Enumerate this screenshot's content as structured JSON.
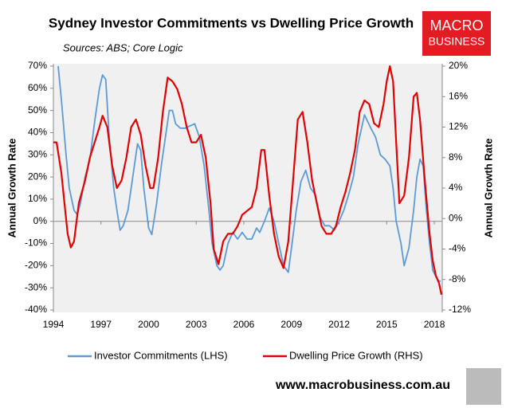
{
  "chart_data": {
    "type": "line",
    "title": "Sydney Investor Commitments vs Dwelling Price Growth",
    "subtitle": "Sources: ABS; Core Logic",
    "y_label": "Annual Growth Rate",
    "y2_label": "Annual Growth Rate",
    "xlim": [
      1994,
      2018.5
    ],
    "xticks": [
      1994,
      1997,
      2000,
      2003,
      2006,
      2009,
      2012,
      2015,
      2018
    ],
    "ylim": [
      -40,
      70
    ],
    "yticks": [
      {
        "value": -40,
        "label": "-40%"
      },
      {
        "value": -30,
        "label": "-30%"
      },
      {
        "value": -20,
        "label": "-20%"
      },
      {
        "value": -10,
        "label": "-10%"
      },
      {
        "value": 0,
        "label": "0%"
      },
      {
        "value": 10,
        "label": "10%"
      },
      {
        "value": 20,
        "label": "20%"
      },
      {
        "value": 30,
        "label": "30%"
      },
      {
        "value": 40,
        "label": "40%"
      },
      {
        "value": 50,
        "label": "50%"
      },
      {
        "value": 60,
        "label": "60%"
      },
      {
        "value": 70,
        "label": "70%"
      }
    ],
    "y2lim": [
      -12,
      20
    ],
    "y2ticks": [
      {
        "value": -12,
        "label": "-12%"
      },
      {
        "value": -8,
        "label": "-8%"
      },
      {
        "value": -4,
        "label": "-4%"
      },
      {
        "value": 0,
        "label": "0%"
      },
      {
        "value": 4,
        "label": "4%"
      },
      {
        "value": 8,
        "label": "8%"
      },
      {
        "value": 12,
        "label": "12%"
      },
      {
        "value": 16,
        "label": "16%"
      },
      {
        "value": 20,
        "label": "20%"
      }
    ],
    "grid": false,
    "plot_background": "#f0f0f0",
    "series": [
      {
        "name": "Investor Commitments (LHS)",
        "color": "#5b9bd5",
        "axis": "y",
        "x": [
          1994.3,
          1994.5,
          1994.8,
          1995.0,
          1995.3,
          1995.5,
          1995.7,
          1996.0,
          1996.3,
          1996.6,
          1996.9,
          1997.1,
          1997.3,
          1997.5,
          1997.8,
          1998.0,
          1998.2,
          1998.4,
          1998.7,
          1999.0,
          1999.3,
          1999.5,
          1999.7,
          2000.0,
          2000.2,
          2000.5,
          2000.8,
          2001.0,
          2001.3,
          2001.5,
          2001.7,
          2002.0,
          2002.3,
          2002.6,
          2002.9,
          2003.2,
          2003.5,
          2003.8,
          2004.0,
          2004.3,
          2004.5,
          2004.7,
          2005.0,
          2005.3,
          2005.6,
          2005.9,
          2006.2,
          2006.5,
          2006.8,
          2007.0,
          2007.3,
          2007.6,
          2007.9,
          2008.2,
          2008.5,
          2008.8,
          2009.0,
          2009.3,
          2009.6,
          2009.9,
          2010.2,
          2010.5,
          2010.8,
          2011.1,
          2011.4,
          2011.7,
          2012.0,
          2012.3,
          2012.6,
          2012.9,
          2013.2,
          2013.6,
          2013.8,
          2014.0,
          2014.3,
          2014.6,
          2014.9,
          2015.2,
          2015.4,
          2015.6,
          2015.9,
          2016.1,
          2016.4,
          2016.7,
          2016.9,
          2017.1,
          2017.3,
          2017.5,
          2017.7,
          2017.9,
          2018.1,
          2018.3,
          2018.4
        ],
        "values": [
          70,
          55,
          30,
          15,
          5,
          3,
          8,
          20,
          28,
          45,
          60,
          66,
          64,
          40,
          15,
          5,
          -4,
          -2,
          5,
          20,
          35,
          32,
          15,
          -3,
          -6,
          8,
          25,
          35,
          50,
          50,
          44,
          42,
          42,
          43,
          44,
          38,
          25,
          5,
          -10,
          -20,
          -22,
          -20,
          -10,
          -5,
          -8,
          -5,
          -8,
          -8,
          -3,
          -5,
          0,
          6,
          0,
          -10,
          -20,
          -23,
          -12,
          5,
          18,
          23,
          15,
          12,
          2,
          -2,
          -2,
          -4,
          0,
          5,
          12,
          20,
          35,
          48,
          45,
          42,
          38,
          30,
          28,
          25,
          15,
          0,
          -10,
          -20,
          -12,
          5,
          20,
          28,
          25,
          5,
          -10,
          -22,
          -25,
          -27,
          -27
        ]
      },
      {
        "name": "Dwelling Price Growth (RHS)",
        "color": "#e00000",
        "axis": "y2",
        "x": [
          1994.0,
          1994.2,
          1994.5,
          1994.7,
          1994.9,
          1995.1,
          1995.3,
          1995.6,
          1996.0,
          1996.3,
          1996.6,
          1996.9,
          1997.1,
          1997.4,
          1997.7,
          1998.0,
          1998.3,
          1998.6,
          1998.9,
          1999.2,
          1999.5,
          1999.8,
          2000.1,
          2000.3,
          2000.6,
          2000.9,
          2001.2,
          2001.5,
          2001.8,
          2002.1,
          2002.4,
          2002.7,
          2003.0,
          2003.3,
          2003.6,
          2003.9,
          2004.1,
          2004.4,
          2004.7,
          2005.0,
          2005.3,
          2005.6,
          2005.9,
          2006.2,
          2006.5,
          2006.8,
          2007.1,
          2007.3,
          2007.6,
          2007.9,
          2008.2,
          2008.5,
          2008.8,
          2009.1,
          2009.4,
          2009.7,
          2010.0,
          2010.3,
          2010.6,
          2010.9,
          2011.2,
          2011.5,
          2011.8,
          2012.1,
          2012.4,
          2012.7,
          2013.0,
          2013.3,
          2013.6,
          2013.9,
          2014.2,
          2014.5,
          2014.8,
          2015.0,
          2015.2,
          2015.4,
          2015.6,
          2015.8,
          2016.1,
          2016.4,
          2016.7,
          2016.9,
          2017.1,
          2017.4,
          2017.7,
          2017.9,
          2018.1,
          2018.3,
          2018.45
        ],
        "values": [
          10,
          10,
          6,
          2,
          -2,
          -3.8,
          -3,
          2,
          5,
          8,
          10,
          12,
          13.5,
          12,
          7,
          4,
          5,
          8,
          12,
          13,
          11,
          7,
          4,
          4,
          8,
          14,
          18.5,
          18,
          17,
          15,
          12,
          10,
          10,
          11,
          8,
          2,
          -4,
          -6,
          -3,
          -2,
          -2,
          -1,
          0.5,
          1,
          1.5,
          4,
          9,
          9,
          3,
          -2,
          -5,
          -6.5,
          -3,
          5,
          13,
          14,
          10,
          5,
          2,
          -1,
          -2,
          -2,
          -1,
          1.5,
          3.5,
          6,
          9,
          14,
          15.5,
          15,
          12.5,
          12,
          15,
          18,
          20,
          18,
          10,
          2,
          3,
          8,
          16,
          16.5,
          13,
          5,
          -2,
          -5.5,
          -7.5,
          -8.5,
          -10
        ]
      }
    ]
  },
  "logo": {
    "line1": "MACRO",
    "line2": "BUSINESS",
    "color": "#e31b23"
  },
  "footer": {
    "url": "www.macrobusiness.com.au"
  }
}
